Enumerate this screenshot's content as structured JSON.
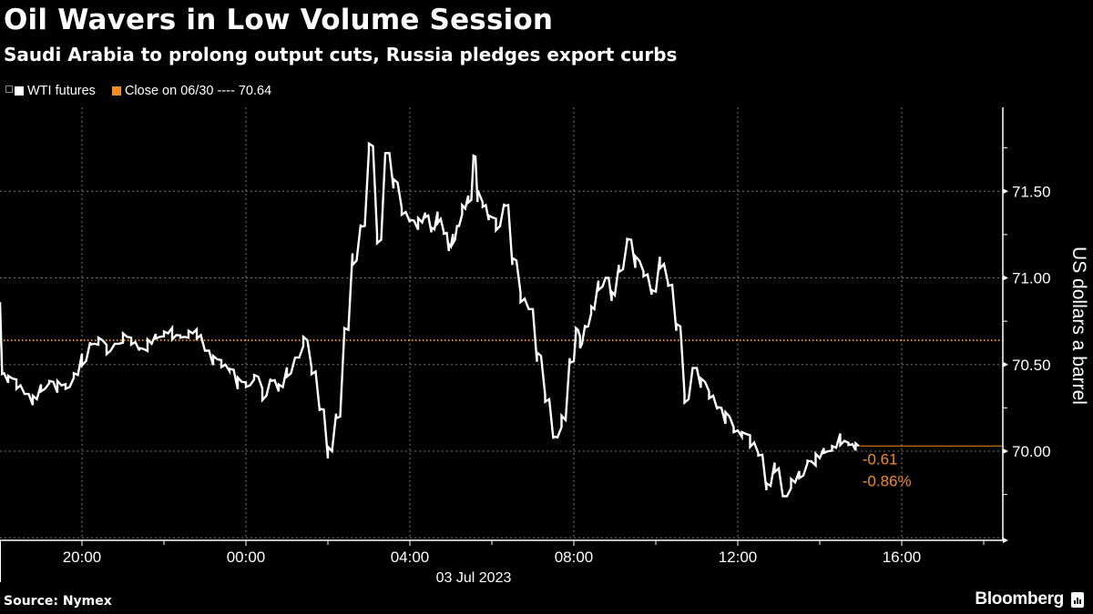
{
  "header": {
    "title": "Oil Wavers in Low Volume Session",
    "subtitle": "Saudi Arabia to prolong output cuts, Russia pledges export curbs"
  },
  "legend": {
    "items": [
      {
        "label": "WTI futures",
        "color": "#ffffff"
      },
      {
        "label": "Close on 06/30 ---- 70.64",
        "color": "#f28c1c"
      }
    ]
  },
  "footer": {
    "source": "Source: Nymex",
    "brand": "Bloomberg"
  },
  "chart_data": {
    "type": "line",
    "title": "Oil Wavers in Low Volume Session",
    "subtitle": "Saudi Arabia to prolong output cuts, Russia pledges export curbs",
    "xlabel": "03 Jul 2023",
    "ylabel": "US dollars a barrel",
    "x_ticks": [
      "20:00",
      "00:00",
      "04:00",
      "08:00",
      "12:00",
      "16:00"
    ],
    "x_date_label": "03 Jul 2023",
    "y_ticks": [
      "70.00",
      "70.50",
      "71.00",
      "71.50"
    ],
    "ylim": [
      69.5,
      71.95
    ],
    "grid": true,
    "legend_position": "top-left",
    "reference_line": {
      "label": "Close on 06/30",
      "value": 70.64,
      "color": "#f28c1c",
      "style": "dotted"
    },
    "last_value_line": {
      "value": 70.03,
      "color": "#f28c1c"
    },
    "annotations": [
      {
        "text": "-0.61",
        "color": "#f28c1c"
      },
      {
        "text": "-0.86%",
        "color": "#f28c1c"
      }
    ],
    "series": [
      {
        "name": "WTI futures",
        "color": "#ffffff",
        "x_hours_from_1800": [
          0.0,
          0.1,
          0.3,
          0.5,
          0.7,
          0.9,
          1.1,
          1.3,
          1.5,
          1.7,
          1.9,
          2.1,
          2.3,
          2.5,
          2.7,
          2.9,
          3.1,
          3.3,
          3.5,
          3.7,
          3.9,
          4.1,
          4.3,
          4.5,
          4.7,
          4.9,
          5.1,
          5.3,
          5.5,
          5.7,
          5.9,
          6.1,
          6.3,
          6.5,
          6.7,
          6.9,
          7.1,
          7.3,
          7.5,
          7.7,
          7.9,
          8.1,
          8.3,
          8.5,
          8.7,
          8.9,
          9.1,
          9.3,
          9.5,
          9.7,
          9.9,
          10.1,
          10.3,
          10.45,
          10.6,
          10.75,
          10.9,
          11.0,
          11.1,
          11.2,
          11.35,
          11.5,
          11.6,
          11.7,
          11.85,
          12.0,
          12.2,
          12.4,
          12.6,
          12.8,
          13.0,
          13.2,
          13.4,
          13.6,
          13.8,
          14.0,
          14.1,
          14.2,
          14.35,
          14.5,
          14.7,
          14.85,
          15.0,
          15.2,
          15.4,
          15.6,
          15.8,
          16.0,
          16.2,
          16.4,
          16.6,
          16.8,
          17.0,
          17.2,
          17.4,
          17.6,
          17.8,
          18.0,
          18.2,
          18.4,
          18.6,
          18.8,
          19.0,
          19.2,
          19.4,
          19.6,
          19.8,
          20.0,
          20.2,
          20.4,
          20.6,
          20.8,
          20.95
        ],
        "values": [
          70.86,
          70.45,
          70.42,
          70.38,
          70.33,
          70.3,
          70.36,
          70.4,
          70.38,
          70.37,
          70.44,
          70.52,
          70.62,
          70.64,
          70.58,
          70.62,
          70.66,
          70.63,
          70.59,
          70.62,
          70.66,
          70.68,
          70.67,
          70.66,
          70.68,
          70.67,
          70.58,
          70.53,
          70.5,
          70.47,
          70.4,
          70.38,
          70.43,
          70.32,
          70.41,
          70.37,
          70.45,
          70.54,
          70.64,
          70.46,
          70.24,
          70.0,
          70.2,
          70.7,
          71.1,
          71.3,
          71.76,
          71.22,
          71.72,
          71.55,
          71.38,
          71.33,
          71.32,
          71.36,
          71.28,
          71.34,
          71.26,
          71.18,
          71.22,
          71.3,
          71.4,
          71.45,
          71.7,
          71.48,
          71.42,
          71.35,
          71.3,
          71.42,
          71.1,
          70.88,
          70.82,
          70.55,
          70.3,
          70.08,
          70.18,
          70.52,
          70.7,
          70.62,
          70.72,
          70.82,
          70.95,
          71.0,
          70.9,
          71.05,
          71.22,
          71.1,
          71.02,
          70.92,
          71.08,
          70.96,
          70.72,
          70.3,
          70.48,
          70.4,
          70.32,
          70.25,
          70.2,
          70.12,
          70.1,
          70.05,
          69.98,
          69.8,
          69.9,
          69.74,
          69.82,
          69.86,
          69.94,
          69.96,
          70.0,
          70.02,
          70.06,
          70.04,
          70.03
        ]
      }
    ],
    "last": {
      "value": 70.03,
      "change": -0.61,
      "change_pct": -0.86
    }
  }
}
